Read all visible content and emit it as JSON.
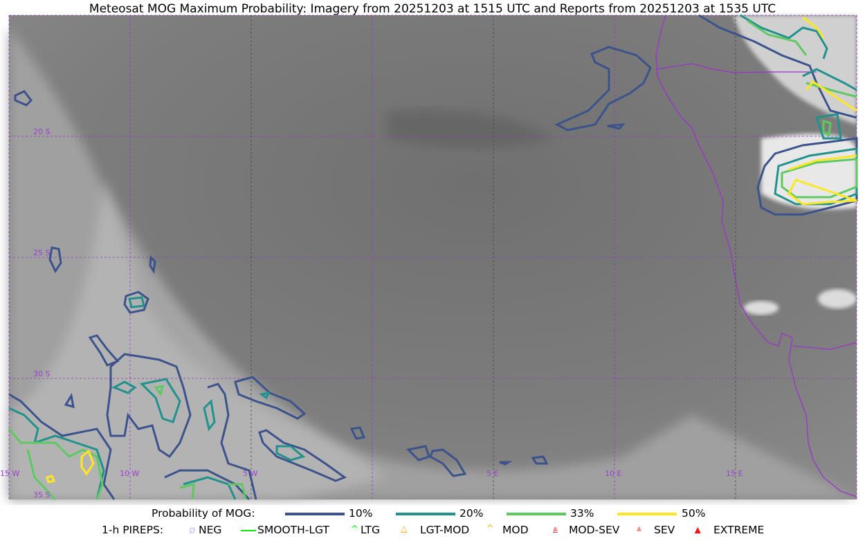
{
  "title": "Meteosat MOG Maximum Probability: Imagery from 20251203 at 1515 UTC and Reports from 20251203 at 1535 UTC",
  "map": {
    "latitude_labels": [
      "20 S",
      "25 S",
      "30 S",
      "35 S"
    ],
    "longitude_labels": [
      "15 W",
      "10 W",
      "5 W",
      "5 E",
      "10 E",
      "15 E"
    ],
    "grid_color": "#9933cc",
    "coastline_color": "#9933cc"
  },
  "legend": {
    "probability": {
      "label": "Probability of MOG:",
      "items": [
        {
          "label": "10%",
          "color": "#3b528b"
        },
        {
          "label": "20%",
          "color": "#21918c"
        },
        {
          "label": "33%",
          "color": "#5ec962"
        },
        {
          "label": "50%",
          "color": "#fde725"
        }
      ]
    },
    "pireps": {
      "label": "1-h PIREPS:",
      "items": [
        {
          "label": "NEG",
          "icon": "neg-circle-slash-icon",
          "color": "#c8c8f0"
        },
        {
          "label": "SMOOTH-LGT",
          "icon": "line-icon",
          "color": "#00ee00"
        },
        {
          "label": "LTG",
          "icon": "caret-icon",
          "color": "#00ee00"
        },
        {
          "label": "LGT-MOD",
          "icon": "caret-bar-icon",
          "color": "#ffb020"
        },
        {
          "label": "MOD",
          "icon": "caret-icon",
          "color": "#ffb020"
        },
        {
          "label": "MOD-SEV",
          "icon": "double-caret-bar-icon",
          "color": "#ff3030"
        },
        {
          "label": "SEV",
          "icon": "double-caret-icon",
          "color": "#ff3030"
        },
        {
          "label": "EXTREME",
          "icon": "filled-triangle-icon",
          "color": "#ff1010"
        }
      ]
    }
  }
}
